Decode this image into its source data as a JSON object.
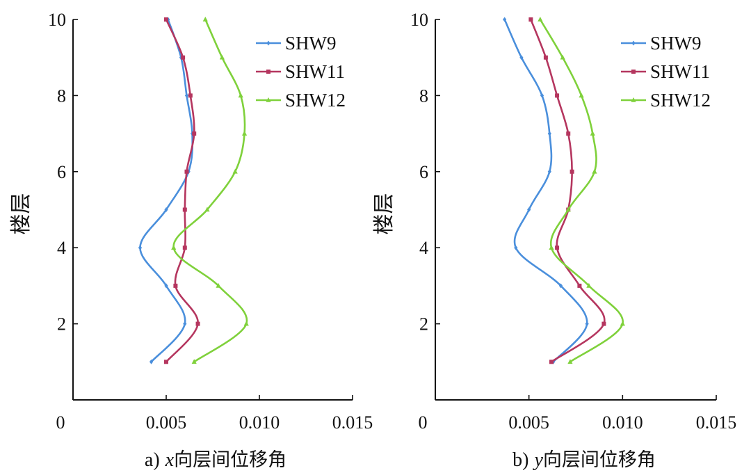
{
  "chart_data": [
    {
      "type": "line",
      "panel_label": "a)",
      "xlabel_var": "x",
      "xlabel_text": "向层间位移角",
      "ylabel": "楼层",
      "xlim": [
        0,
        0.015
      ],
      "ylim": [
        0,
        10
      ],
      "xticks": [
        0,
        0.005,
        0.01,
        0.015
      ],
      "xtick_labels": [
        "0",
        "0.005",
        "0.010",
        "0.015"
      ],
      "yticks": [
        2,
        4,
        6,
        8,
        10
      ],
      "ytick_labels": [
        "2",
        "4",
        "6",
        "8",
        "10"
      ],
      "legend_position": "top-right",
      "y": [
        1,
        2,
        3,
        4,
        5,
        6,
        7,
        8,
        9,
        10
      ],
      "series": [
        {
          "name": "SHW9",
          "color": "#4a8fdc",
          "marker": "diamond",
          "x": [
            0.0042,
            0.006,
            0.005,
            0.0036,
            0.005,
            0.0062,
            0.0064,
            0.0061,
            0.0058,
            0.0051
          ]
        },
        {
          "name": "SHW11",
          "color": "#b5365f",
          "marker": "square",
          "x": [
            0.005,
            0.0067,
            0.0055,
            0.006,
            0.006,
            0.0061,
            0.0065,
            0.0063,
            0.0059,
            0.005
          ]
        },
        {
          "name": "SHW12",
          "color": "#7fd13b",
          "marker": "triangle",
          "x": [
            0.0065,
            0.0093,
            0.0078,
            0.0054,
            0.0072,
            0.0087,
            0.0092,
            0.009,
            0.008,
            0.0071
          ]
        }
      ]
    },
    {
      "type": "line",
      "panel_label": "b)",
      "xlabel_var": "y",
      "xlabel_text": "向层间位移角",
      "ylabel": "楼层",
      "xlim": [
        0,
        0.015
      ],
      "ylim": [
        0,
        10
      ],
      "xticks": [
        0,
        0.005,
        0.01,
        0.015
      ],
      "xtick_labels": [
        "0",
        "0.005",
        "0.010",
        "0.015"
      ],
      "yticks": [
        2,
        4,
        6,
        8,
        10
      ],
      "ytick_labels": [
        "2",
        "4",
        "6",
        "8",
        "10"
      ],
      "legend_position": "top-right",
      "y": [
        1,
        2,
        3,
        4,
        5,
        6,
        7,
        8,
        9,
        10
      ],
      "series": [
        {
          "name": "SHW9",
          "color": "#4a8fdc",
          "marker": "diamond",
          "x": [
            0.0063,
            0.0081,
            0.0067,
            0.0043,
            0.005,
            0.0061,
            0.0061,
            0.0057,
            0.0046,
            0.0037
          ]
        },
        {
          "name": "SHW11",
          "color": "#b5365f",
          "marker": "square",
          "x": [
            0.0062,
            0.009,
            0.0077,
            0.0065,
            0.0071,
            0.0073,
            0.0071,
            0.0065,
            0.0059,
            0.0051
          ]
        },
        {
          "name": "SHW12",
          "color": "#7fd13b",
          "marker": "triangle",
          "x": [
            0.0072,
            0.01,
            0.0082,
            0.0062,
            0.0071,
            0.0085,
            0.0084,
            0.0078,
            0.0068,
            0.0056
          ]
        }
      ]
    }
  ]
}
